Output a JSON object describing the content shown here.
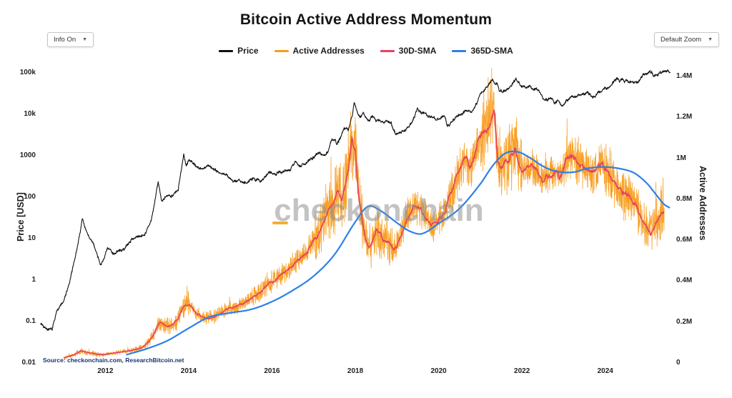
{
  "controls": {
    "info_dropdown_label": "Info On",
    "zoom_dropdown_label": "Default Zoom"
  },
  "icons": {
    "chevron_down": "▼"
  },
  "watermark": {
    "text": "checkonchain"
  },
  "source_note": "Source: checkonchain.com, ResearchBitcoin.net",
  "chart_data": {
    "type": "line",
    "title": "Bitcoin Active Address Momentum",
    "x_axis": {
      "range": [
        2010.45,
        2025.6
      ],
      "ticks": [
        2012,
        2014,
        2016,
        2018,
        2020,
        2022,
        2024
      ]
    },
    "y_left": {
      "label": "Price [USD]",
      "scale": "log",
      "range": [
        0.01,
        158000
      ],
      "ticks": [
        {
          "v": 0.01,
          "t": "0.01"
        },
        {
          "v": 0.1,
          "t": "0.1"
        },
        {
          "v": 1,
          "t": "1"
        },
        {
          "v": 10,
          "t": "10"
        },
        {
          "v": 100,
          "t": "100"
        },
        {
          "v": 1000,
          "t": "1000"
        },
        {
          "v": 10000,
          "t": "10k"
        },
        {
          "v": 100000,
          "t": "100k"
        }
      ]
    },
    "y_right": {
      "label": "Active Addresses",
      "scale": "linear",
      "range": [
        0,
        1460000
      ],
      "ticks": [
        {
          "v": 0,
          "t": "0"
        },
        {
          "v": 200000,
          "t": "0.2M"
        },
        {
          "v": 400000,
          "t": "0.4M"
        },
        {
          "v": 600000,
          "t": "0.6M"
        },
        {
          "v": 800000,
          "t": "0.8M"
        },
        {
          "v": 1000000,
          "t": "1M"
        },
        {
          "v": 1200000,
          "t": "1.2M"
        },
        {
          "v": 1400000,
          "t": "1.4M"
        }
      ]
    },
    "legend_position": "top-center",
    "grid": false,
    "series": [
      {
        "name": "Price",
        "axis": "left",
        "color": "#111111",
        "unit": "USD",
        "points": [
          [
            2010.45,
            0.09
          ],
          [
            2010.6,
            0.07
          ],
          [
            2010.72,
            0.06
          ],
          [
            2010.85,
            0.2
          ],
          [
            2011.0,
            0.3
          ],
          [
            2011.15,
            0.9
          ],
          [
            2011.35,
            8
          ],
          [
            2011.45,
            30
          ],
          [
            2011.55,
            14
          ],
          [
            2011.75,
            6
          ],
          [
            2011.9,
            2.3
          ],
          [
            2012.05,
            5.5
          ],
          [
            2012.2,
            4.5
          ],
          [
            2012.45,
            5.5
          ],
          [
            2012.65,
            10
          ],
          [
            2012.78,
            11
          ],
          [
            2012.95,
            13.5
          ],
          [
            2013.1,
            25
          ],
          [
            2013.27,
            230
          ],
          [
            2013.35,
            80
          ],
          [
            2013.55,
            110
          ],
          [
            2013.75,
            140
          ],
          [
            2013.88,
            1150
          ],
          [
            2013.94,
            600
          ],
          [
            2014.0,
            820
          ],
          [
            2014.12,
            640
          ],
          [
            2014.3,
            450
          ],
          [
            2014.45,
            590
          ],
          [
            2014.6,
            480
          ],
          [
            2014.8,
            380
          ],
          [
            2014.95,
            320
          ],
          [
            2015.07,
            220
          ],
          [
            2015.2,
            255
          ],
          [
            2015.35,
            235
          ],
          [
            2015.55,
            275
          ],
          [
            2015.72,
            240
          ],
          [
            2015.85,
            330
          ],
          [
            2015.95,
            430
          ],
          [
            2016.05,
            380
          ],
          [
            2016.25,
            425
          ],
          [
            2016.45,
            455
          ],
          [
            2016.55,
            680
          ],
          [
            2016.66,
            600
          ],
          [
            2016.8,
            640
          ],
          [
            2016.95,
            790
          ],
          [
            2017.05,
            1050
          ],
          [
            2017.15,
            1180
          ],
          [
            2017.25,
            1050
          ],
          [
            2017.35,
            1250
          ],
          [
            2017.42,
            2350
          ],
          [
            2017.5,
            2600
          ],
          [
            2017.56,
            1950
          ],
          [
            2017.65,
            2850
          ],
          [
            2017.71,
            4250
          ],
          [
            2017.78,
            4850
          ],
          [
            2017.83,
            4150
          ],
          [
            2017.88,
            6500
          ],
          [
            2017.93,
            9900
          ],
          [
            2017.97,
            19200
          ],
          [
            2018.02,
            13500
          ],
          [
            2018.07,
            10500
          ],
          [
            2018.13,
            8300
          ],
          [
            2018.19,
            11000
          ],
          [
            2018.26,
            8000
          ],
          [
            2018.34,
            7000
          ],
          [
            2018.41,
            9300
          ],
          [
            2018.5,
            6400
          ],
          [
            2018.58,
            6800
          ],
          [
            2018.66,
            6300
          ],
          [
            2018.76,
            6500
          ],
          [
            2018.86,
            6400
          ],
          [
            2018.91,
            4000
          ],
          [
            2018.98,
            3300
          ],
          [
            2019.06,
            3650
          ],
          [
            2019.16,
            3950
          ],
          [
            2019.3,
            5300
          ],
          [
            2019.42,
            8600
          ],
          [
            2019.5,
            12900
          ],
          [
            2019.58,
            10500
          ],
          [
            2019.65,
            11900
          ],
          [
            2019.76,
            9500
          ],
          [
            2019.86,
            8300
          ],
          [
            2019.96,
            7200
          ],
          [
            2020.06,
            8600
          ],
          [
            2020.14,
            10300
          ],
          [
            2020.21,
            5000
          ],
          [
            2020.32,
            6900
          ],
          [
            2020.42,
            8900
          ],
          [
            2020.55,
            9400
          ],
          [
            2020.66,
            11600
          ],
          [
            2020.76,
            10600
          ],
          [
            2020.86,
            13600
          ],
          [
            2020.96,
            23500
          ],
          [
            2021.02,
            31000
          ],
          [
            2021.08,
            36000
          ],
          [
            2021.16,
            49000
          ],
          [
            2021.23,
            57500
          ],
          [
            2021.29,
            62500
          ],
          [
            2021.34,
            58500
          ],
          [
            2021.4,
            54000
          ],
          [
            2021.46,
            37000
          ],
          [
            2021.53,
            33500
          ],
          [
            2021.59,
            35500
          ],
          [
            2021.66,
            42500
          ],
          [
            2021.73,
            48500
          ],
          [
            2021.81,
            62500
          ],
          [
            2021.87,
            67500
          ],
          [
            2021.93,
            57500
          ],
          [
            2021.99,
            47000
          ],
          [
            2022.06,
            43500
          ],
          [
            2022.13,
            38500
          ],
          [
            2022.21,
            44500
          ],
          [
            2022.28,
            39500
          ],
          [
            2022.34,
            46500
          ],
          [
            2022.41,
            40000
          ],
          [
            2022.46,
            30000
          ],
          [
            2022.53,
            20500
          ],
          [
            2022.61,
            21500
          ],
          [
            2022.69,
            24000
          ],
          [
            2022.76,
            20000
          ],
          [
            2022.84,
            19800
          ],
          [
            2022.89,
            21200
          ],
          [
            2022.94,
            16300
          ],
          [
            2023.01,
            16800
          ],
          [
            2023.06,
            21300
          ],
          [
            2023.13,
            23300
          ],
          [
            2023.21,
            28300
          ],
          [
            2023.28,
            27500
          ],
          [
            2023.36,
            29300
          ],
          [
            2023.46,
            30600
          ],
          [
            2023.56,
            29600
          ],
          [
            2023.64,
            29100
          ],
          [
            2023.69,
            26100
          ],
          [
            2023.76,
            27200
          ],
          [
            2023.84,
            34600
          ],
          [
            2023.91,
            37300
          ],
          [
            2023.98,
            42600
          ],
          [
            2024.06,
            43200
          ],
          [
            2024.13,
            48500
          ],
          [
            2024.19,
            62500
          ],
          [
            2024.23,
            68500
          ],
          [
            2024.28,
            73600
          ],
          [
            2024.34,
            64300
          ],
          [
            2024.41,
            67200
          ],
          [
            2024.46,
            61300
          ],
          [
            2024.53,
            65300
          ],
          [
            2024.61,
            56500
          ],
          [
            2024.66,
            61500
          ],
          [
            2024.73,
            64500
          ],
          [
            2024.79,
            58500
          ],
          [
            2024.86,
            70500
          ],
          [
            2024.91,
            91500
          ],
          [
            2024.96,
            98500
          ],
          [
            2025.01,
            94500
          ],
          [
            2025.06,
            102500
          ],
          [
            2025.11,
            97500
          ],
          [
            2025.16,
            84500
          ],
          [
            2025.21,
            82500
          ],
          [
            2025.27,
            87500
          ],
          [
            2025.34,
            95500
          ],
          [
            2025.41,
            104500
          ],
          [
            2025.46,
            108500
          ],
          [
            2025.51,
            103500
          ],
          [
            2025.56,
            96500
          ]
        ]
      },
      {
        "name": "Active Addresses",
        "axis": "right",
        "color": "#f89c1c",
        "unit": "addresses/day",
        "monthly_start": 2011.0,
        "monthly_step_years": 0.083333,
        "values_k": [
          25,
          30,
          35,
          40,
          50,
          60,
          55,
          50,
          48,
          45,
          42,
          40,
          42,
          45,
          48,
          50,
          52,
          55,
          58,
          60,
          64,
          68,
          72,
          80,
          95,
          115,
          140,
          180,
          200,
          185,
          175,
          185,
          195,
          215,
          260,
          290,
          285,
          265,
          245,
          235,
          225,
          218,
          220,
          226,
          235,
          245,
          255,
          262,
          268,
          272,
          280,
          288,
          296,
          305,
          315,
          325,
          338,
          350,
          368,
          388,
          400,
          408,
          418,
          430,
          448,
          465,
          478,
          490,
          502,
          520,
          542,
          568,
          598,
          618,
          648,
          695,
          745,
          775,
          798,
          845,
          795,
          848,
          945,
          1090,
          1040,
          810,
          700,
          605,
          555,
          598,
          645,
          628,
          600,
          590,
          578,
          558,
          578,
          618,
          675,
          718,
          755,
          775,
          768,
          748,
          718,
          698,
          680,
          668,
          698,
          718,
          748,
          815,
          848,
          898,
          945,
          975,
          995,
          948,
          978,
          1045,
          1095,
          1145,
          1148,
          1195,
          1245,
          1000,
          948,
          975,
          998,
          1018,
          1048,
          1000,
          948,
          938,
          958,
          948,
          938,
          918,
          898,
          908,
          918,
          928,
          938,
          908,
          948,
          998,
          1018,
          998,
          978,
          958,
          948,
          938,
          928,
          948,
          968,
          978,
          948,
          918,
          898,
          868,
          848,
          828,
          818,
          808,
          788,
          778,
          720,
          690,
          660,
          630,
          660,
          700,
          730,
          740
        ],
        "noise_frac_by_year": [
          0.22,
          0.18,
          0.18,
          0.12,
          0.12,
          0.1,
          0.16,
          0.16,
          0.1,
          0.1,
          0.14,
          0.08,
          0.1,
          0.13,
          0.14
        ]
      },
      {
        "name": "30D-SMA",
        "axis": "right",
        "color": "#e8425f",
        "derived_from": "Active Addresses monthly means (values_k above, in thousands)"
      },
      {
        "name": "365D-SMA",
        "axis": "right",
        "color": "#2e80e8",
        "points_k": [
          [
            2012.5,
            40
          ],
          [
            2013.0,
            70
          ],
          [
            2013.5,
            110
          ],
          [
            2014.0,
            170
          ],
          [
            2014.5,
            225
          ],
          [
            2015.0,
            245
          ],
          [
            2015.5,
            262
          ],
          [
            2016.0,
            300
          ],
          [
            2016.5,
            355
          ],
          [
            2017.0,
            425
          ],
          [
            2017.5,
            530
          ],
          [
            2018.0,
            690
          ],
          [
            2018.3,
            765
          ],
          [
            2018.6,
            745
          ],
          [
            2019.0,
            685
          ],
          [
            2019.3,
            645
          ],
          [
            2019.6,
            632
          ],
          [
            2020.0,
            682
          ],
          [
            2020.5,
            755
          ],
          [
            2021.0,
            875
          ],
          [
            2021.3,
            965
          ],
          [
            2021.6,
            1025
          ],
          [
            2021.9,
            1032
          ],
          [
            2022.2,
            1002
          ],
          [
            2022.5,
            962
          ],
          [
            2022.8,
            938
          ],
          [
            2023.2,
            932
          ],
          [
            2023.6,
            952
          ],
          [
            2024.0,
            958
          ],
          [
            2024.4,
            948
          ],
          [
            2024.7,
            928
          ],
          [
            2025.0,
            878
          ],
          [
            2025.2,
            828
          ],
          [
            2025.4,
            778
          ],
          [
            2025.55,
            758
          ]
        ]
      }
    ]
  }
}
